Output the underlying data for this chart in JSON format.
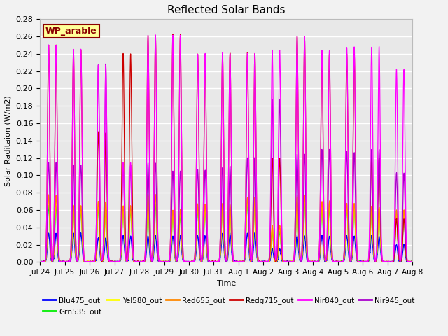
{
  "title": "Reflected Solar Bands",
  "xlabel": "Time",
  "ylabel": "Solar Raditaion (W/m2)",
  "ylim": [
    0,
    0.28
  ],
  "yticks": [
    0.0,
    0.02,
    0.04,
    0.06,
    0.08,
    0.1,
    0.12,
    0.14,
    0.16,
    0.18,
    0.2,
    0.22,
    0.24,
    0.26,
    0.28
  ],
  "plot_bg": "#e8e8e8",
  "grid_color": "#ffffff",
  "fig_bg": "#f2f2f2",
  "legend_label": "WP_arable",
  "legend_bg": "#ffff99",
  "legend_border": "#8b0000",
  "legend_text_color": "#8b0000",
  "series_colors": {
    "Blu475_out": "#0000ff",
    "Grn535_out": "#00ee00",
    "Yel580_out": "#ffff00",
    "Red655_out": "#ff8800",
    "Redg715_out": "#cc0000",
    "Nir840_out": "#ff00ff",
    "Nir945_out": "#aa00cc"
  },
  "tick_labels": [
    "Jul 24",
    "Jul 25",
    "Jul 26",
    "Jul 27",
    "Jul 28",
    "Jul 29",
    "Jul 30",
    "Jul 31",
    "Aug 1",
    "Aug 2",
    "Aug 3",
    "Aug 4",
    "Aug 5",
    "Aug 6",
    "Aug 7",
    "Aug 8"
  ],
  "n_days": 15,
  "day_peaks_nir840": [
    0.25,
    0.245,
    0.228,
    0.115,
    0.261,
    0.262,
    0.24,
    0.241,
    0.241,
    0.244,
    0.26,
    0.244,
    0.248,
    0.248,
    0.222
  ],
  "day_peaks_nir945": [
    0.115,
    0.112,
    0.228,
    0.112,
    0.114,
    0.105,
    0.106,
    0.11,
    0.12,
    0.187,
    0.124,
    0.13,
    0.127,
    0.13,
    0.103
  ],
  "day_peaks_redg715": [
    0.25,
    0.245,
    0.15,
    0.24,
    0.261,
    0.262,
    0.24,
    0.241,
    0.241,
    0.12,
    0.26,
    0.24,
    0.24,
    0.12,
    0.05
  ],
  "day_peaks_red655": [
    0.077,
    0.065,
    0.07,
    0.065,
    0.078,
    0.06,
    0.067,
    0.067,
    0.074,
    0.042,
    0.077,
    0.07,
    0.068,
    0.064,
    0.06
  ],
  "day_peaks_yel580": [
    0.075,
    0.065,
    0.068,
    0.065,
    0.077,
    0.058,
    0.065,
    0.065,
    0.073,
    0.04,
    0.075,
    0.068,
    0.065,
    0.062,
    0.058
  ],
  "day_peaks_grn535": [
    0.065,
    0.06,
    0.062,
    0.06,
    0.067,
    0.053,
    0.06,
    0.062,
    0.068,
    0.035,
    0.068,
    0.062,
    0.062,
    0.058,
    0.053
  ],
  "day_peaks_blu475": [
    0.033,
    0.033,
    0.028,
    0.03,
    0.03,
    0.03,
    0.03,
    0.033,
    0.033,
    0.015,
    0.03,
    0.03,
    0.03,
    0.03,
    0.02
  ]
}
